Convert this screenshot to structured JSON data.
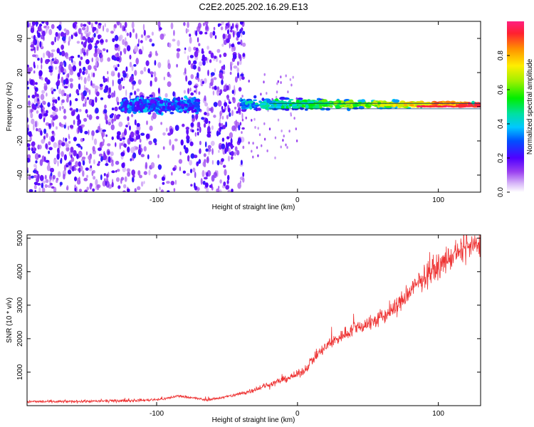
{
  "title": "C2E2.2025.202.16.29.E13",
  "chart_data": [
    {
      "type": "heatmap",
      "xlabel": "Height of straight line (km)",
      "ylabel": "Frequency (Hz)",
      "xlim": [
        -192,
        130
      ],
      "ylim": [
        -50,
        50
      ],
      "xticks": [
        -100,
        0,
        100
      ],
      "xtick_labels": [
        "-100",
        "0",
        "100"
      ],
      "yticks": [
        -40,
        -20,
        0,
        20,
        40
      ],
      "ytick_labels": [
        "-40",
        "-20",
        "0",
        "20",
        "40"
      ],
      "colorbar": {
        "label": "Normalized spectral amplitude",
        "range": [
          0,
          1
        ],
        "ticks": [
          0,
          0.2,
          0.4,
          0.6,
          0.8
        ],
        "tick_labels": [
          "0.0",
          "0.2",
          "0.4",
          "0.6",
          "0.8"
        ]
      },
      "description_regions": [
        {
          "x_range": [
            -192,
            -38
          ],
          "freq_range": [
            -50,
            50
          ],
          "level": "scattered low (0.1-0.3)"
        },
        {
          "x_range": [
            -125,
            -75
          ],
          "freq_range": [
            -6,
            8
          ],
          "level": "0.2-0.45"
        },
        {
          "x_range": [
            -40,
            130
          ],
          "freq_range": [
            -4,
            5
          ],
          "level": "0.3-1.0, narrowing toward 0 Hz"
        }
      ]
    },
    {
      "type": "line",
      "xlabel": "Height of straight line (km)",
      "ylabel": "SNR (10 * v/v)",
      "xlim": [
        -192,
        130
      ],
      "ylim": [
        0,
        5100
      ],
      "xticks": [
        -100,
        0,
        100
      ],
      "xtick_labels": [
        "-100",
        "0",
        "100"
      ],
      "yticks": [
        1000,
        2000,
        3000,
        4000,
        5000
      ],
      "ytick_labels": [
        "1000",
        "2000",
        "3000",
        "4000",
        "5000"
      ],
      "color": "#ee3333",
      "series": [
        {
          "x": [
            -192,
            -170,
            -150,
            -130,
            -110,
            -95,
            -85,
            -75,
            -65,
            -55,
            -45,
            -35,
            -25,
            -15,
            -5,
            0,
            5,
            10,
            20,
            30,
            40,
            50,
            60,
            70,
            80,
            90,
            100,
            110,
            120,
            130
          ],
          "values": [
            120,
            120,
            130,
            140,
            160,
            200,
            290,
            240,
            170,
            230,
            310,
            420,
            560,
            700,
            850,
            930,
            1050,
            1350,
            1750,
            2050,
            2300,
            2450,
            2620,
            2950,
            3400,
            3850,
            4150,
            4450,
            4700,
            4800
          ]
        }
      ]
    }
  ]
}
